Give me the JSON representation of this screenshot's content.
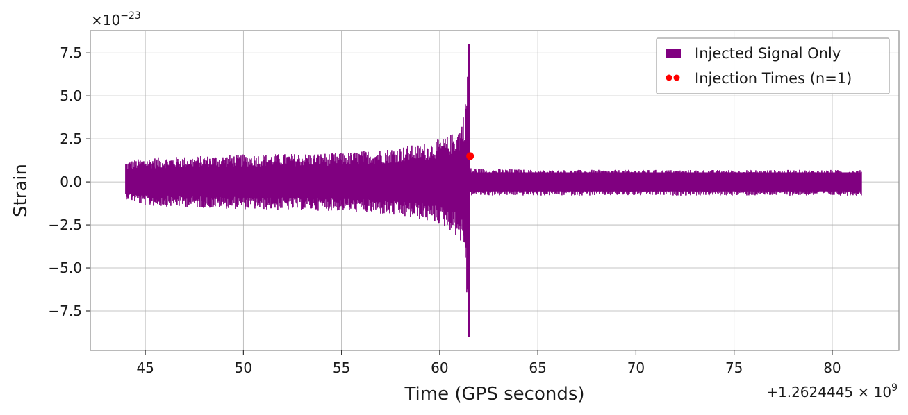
{
  "chart_data": {
    "type": "line",
    "xlabel": "Time (GPS seconds)",
    "ylabel": "Strain",
    "x_offset_label": "+1.2624445 × 10",
    "x_offset_exponent": "9",
    "y_scale_label": "×10",
    "y_scale_exponent": "−23",
    "xlim": [
      42.2,
      83.4
    ],
    "ylim": [
      -9.8,
      8.8
    ],
    "grid": true,
    "legend_position": "top-right",
    "x_ticks": [
      45,
      50,
      55,
      60,
      65,
      70,
      75,
      80
    ],
    "x_tick_labels": [
      "45",
      "50",
      "55",
      "60",
      "65",
      "70",
      "75",
      "80"
    ],
    "y_ticks": [
      7.5,
      5.0,
      2.5,
      0.0,
      -2.5,
      -5.0,
      -7.5
    ],
    "y_tick_labels": [
      "7.5",
      "5.0",
      "2.5",
      "0.0",
      "−2.5",
      "−5.0",
      "−7.5"
    ],
    "series": [
      {
        "name": "Injected Signal Only",
        "color": "#800080",
        "x_start": 44.0,
        "x_end": 81.5,
        "description_envelope": {
          "t": [
            44.0,
            45.0,
            50.0,
            55.0,
            57.0,
            59.0,
            60.0,
            60.5,
            61.0,
            61.3,
            61.45,
            61.55,
            61.6,
            65.0,
            70.0,
            75.0,
            81.5
          ],
          "upper": [
            1.2,
            1.4,
            1.6,
            1.7,
            1.9,
            2.2,
            2.5,
            2.7,
            3.2,
            4.5,
            8.0,
            0.9,
            0.8,
            0.7,
            0.7,
            0.7,
            0.7
          ],
          "lower": [
            -1.0,
            -1.4,
            -1.6,
            -1.7,
            -1.9,
            -2.2,
            -2.5,
            -2.8,
            -3.3,
            -4.5,
            -9.0,
            -1.0,
            -0.8,
            -0.8,
            -0.8,
            -0.8,
            -0.8
          ]
        }
      },
      {
        "name": "Injection Times (n=1)",
        "color": "#ff0000",
        "type": "scatter",
        "x": [
          61.55
        ],
        "y": [
          1.5
        ]
      }
    ]
  }
}
